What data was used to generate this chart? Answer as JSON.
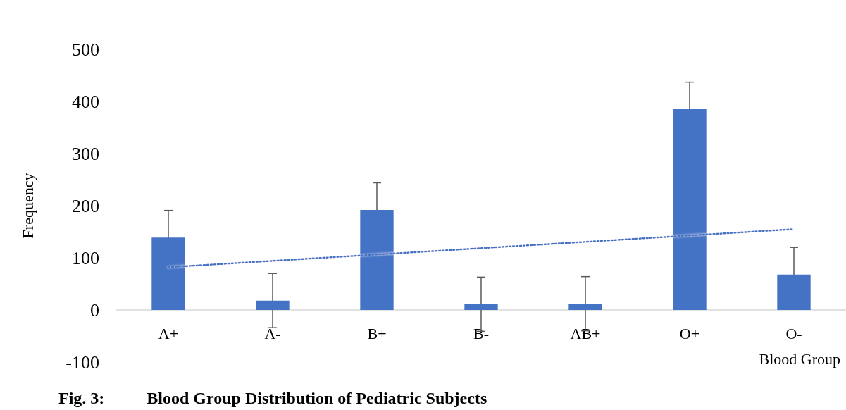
{
  "chart_data": {
    "type": "bar",
    "title": "Fig. 3:          Blood Group Distribution of Pediatric Subjects",
    "xlabel": "Blood Group",
    "ylabel": "Frequency",
    "categories": [
      "A+",
      "A-",
      "B+",
      "B-",
      "AB+",
      "O+",
      "O-"
    ],
    "series": [
      {
        "color": "#4472c4",
        "values": [
          139,
          18,
          192,
          11,
          12,
          385,
          68
        ],
        "errors": [
          52,
          52,
          52,
          52,
          52,
          52,
          52
        ]
      },
      {
        "type": "line",
        "color": "#4472c4",
        "x": [
          "A+",
          "O-"
        ],
        "values": [
          82,
          155
        ],
        "line_style": "dotted",
        "marker": "none"
      }
    ],
    "ylim": [
      -100,
      500
    ],
    "yticks": [
      -100,
      0,
      100,
      200,
      300,
      400,
      500
    ],
    "grid": false
  }
}
